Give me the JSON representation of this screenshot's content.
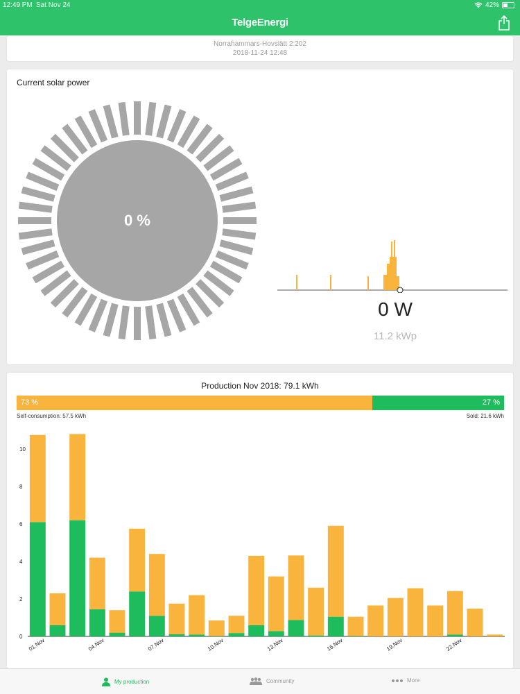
{
  "status_bar": {
    "time": "12:49 PM",
    "date": "Sat Nov 24",
    "battery": "42%"
  },
  "header": {
    "brand": "TelgeEnergi",
    "share_icon": "share-icon"
  },
  "location": {
    "name": "Norrahammars-Hovslätt 2:202",
    "timestamp": "2018-11-24 12:48"
  },
  "solar": {
    "title": "Current solar power",
    "percent_label": "0 %",
    "power": "0 W",
    "capacity": "11.2 kWp",
    "gauge_ticks": 48,
    "colors": {
      "gauge": "#a6a6a6",
      "accent": "#f9b43e"
    }
  },
  "production": {
    "title": "Production Nov 2018: 79.1 kWh",
    "self_pct_label": "73 %",
    "sold_pct_label": "27 %",
    "self_share": 0.73,
    "self_label": "Self-consumption: 57.5 kWh",
    "sold_label": "Sold: 21.6 kWh",
    "colors": {
      "self": "#f9b43e",
      "sold": "#1ebc5d"
    }
  },
  "chart_data": {
    "type": "bar",
    "stacked": true,
    "categories": [
      "01.Nov",
      "02.Nov",
      "03.Nov",
      "04.Nov",
      "05.Nov",
      "06.Nov",
      "07.Nov",
      "08.Nov",
      "09.Nov",
      "10.Nov",
      "11.Nov",
      "12.Nov",
      "13.Nov",
      "14.Nov",
      "15.Nov",
      "16.Nov",
      "17.Nov",
      "18.Nov",
      "19.Nov",
      "20.Nov",
      "21.Nov",
      "22.Nov",
      "23.Nov",
      "24.Nov"
    ],
    "tick_labels": [
      "01.Nov",
      "04.Nov",
      "07.Nov",
      "10.Nov",
      "13.Nov",
      "16.Nov",
      "19.Nov",
      "22.Nov"
    ],
    "series": [
      {
        "color": "#1ebc5d",
        "values": [
          6.1,
          0.6,
          6.2,
          1.45,
          0.2,
          2.4,
          1.1,
          0.12,
          0.1,
          0.02,
          0.18,
          0.6,
          0.28,
          0.87,
          0.05,
          1.05,
          0.02,
          0.0,
          0.0,
          0.0,
          0.0,
          0.1,
          0.0,
          0.0
        ]
      },
      {
        "color": "#f9b43e",
        "values": [
          4.65,
          1.7,
          4.6,
          2.75,
          1.2,
          3.35,
          3.3,
          1.63,
          2.1,
          0.83,
          0.92,
          3.7,
          2.92,
          3.45,
          2.55,
          4.85,
          1.03,
          1.65,
          2.05,
          2.57,
          1.65,
          2.32,
          1.48,
          0.1
        ]
      }
    ],
    "ylim": [
      0,
      11
    ],
    "yticks": [
      0,
      2,
      4,
      6,
      8,
      10
    ]
  },
  "tabs": [
    {
      "label": "My production",
      "icon": "person-icon",
      "active": true
    },
    {
      "label": "Community",
      "icon": "community-icon",
      "active": false
    },
    {
      "label": "More",
      "icon": "more-icon",
      "active": false
    }
  ]
}
